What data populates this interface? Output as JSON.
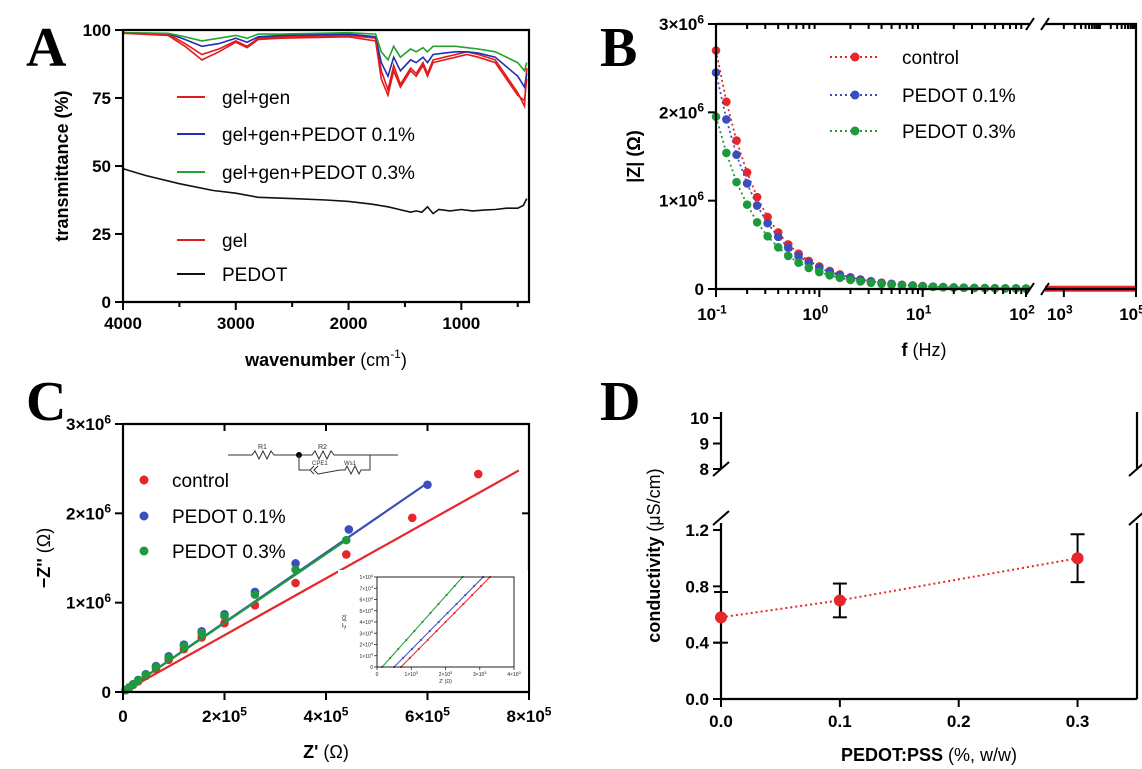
{
  "panels": {
    "A": "A",
    "B": "B",
    "C": "C",
    "D": "D"
  },
  "chart_data": [
    {
      "panel": "A",
      "type": "line",
      "xlabel": "wavenumber",
      "xlabel_unit": "(cm",
      "xlabel_unit_sup": "-1",
      "xlabel_unit_close": ")",
      "ylabel": "transmittance (%)",
      "xlim": [
        4000,
        400
      ],
      "ylim": [
        0,
        100
      ],
      "xticks": [
        "4000",
        "3000",
        "2000",
        "1000"
      ],
      "yticks": [
        "0",
        "25",
        "50",
        "75",
        "100"
      ],
      "legend_placement": "left-center",
      "series": [
        {
          "name": "gel+gen",
          "color": "#e31a1c",
          "x": [
            4000,
            3600,
            3450,
            3300,
            3150,
            3000,
            2900,
            2800,
            2600,
            2000,
            1760,
            1710,
            1650,
            1600,
            1540,
            1450,
            1400,
            1340,
            1300,
            1250,
            1150,
            1050,
            950,
            850,
            700,
            500,
            440,
            420
          ],
          "y": [
            99,
            98.5,
            95,
            91,
            93,
            96,
            94,
            97,
            97.5,
            98,
            97,
            85,
            78,
            87,
            80,
            86,
            84,
            88,
            84,
            89,
            90,
            91,
            92,
            91,
            89,
            77,
            72,
            86
          ]
        },
        {
          "name": "gel+gen+PEDOT 0.1%",
          "color": "#1f2fb4",
          "x": [
            4000,
            3600,
            3450,
            3300,
            3150,
            3000,
            2900,
            2800,
            2600,
            2000,
            1760,
            1710,
            1650,
            1600,
            1540,
            1450,
            1400,
            1340,
            1300,
            1250,
            1150,
            1050,
            950,
            850,
            700,
            500,
            440,
            420
          ],
          "y": [
            99,
            98.7,
            96.5,
            94,
            95,
            97,
            95.5,
            97.5,
            98,
            98.5,
            97.5,
            88,
            83,
            90,
            85,
            89,
            88,
            90,
            88,
            91,
            91.5,
            92,
            92,
            91.5,
            90,
            83,
            79,
            84
          ]
        },
        {
          "name": "gel+gen+PEDOT 0.3%",
          "color": "#22a32a",
          "x": [
            4000,
            3600,
            3450,
            3300,
            3150,
            3000,
            2900,
            2800,
            2600,
            2000,
            1760,
            1710,
            1650,
            1600,
            1540,
            1450,
            1400,
            1340,
            1300,
            1250,
            1150,
            1050,
            950,
            850,
            700,
            500,
            440,
            420
          ],
          "y": [
            99,
            98.8,
            97.5,
            96,
            97,
            98,
            97,
            98.5,
            98.5,
            99,
            98.5,
            92,
            89,
            94,
            90,
            93,
            92,
            93.5,
            92,
            94,
            94,
            94,
            93.5,
            93,
            92,
            88,
            85,
            88
          ]
        },
        {
          "name": "gel",
          "color": "#e31a1c",
          "x": [
            4000,
            3600,
            3450,
            3300,
            3150,
            3000,
            2900,
            2800,
            2600,
            2000,
            1760,
            1710,
            1650,
            1600,
            1540,
            1450,
            1400,
            1340,
            1300,
            1250,
            1150,
            1050,
            950,
            850,
            700,
            500,
            440,
            420
          ],
          "y": [
            98.8,
            98,
            94,
            89,
            92,
            95.5,
            93.5,
            96.5,
            97,
            97.5,
            96,
            82,
            76,
            85,
            79,
            85,
            83,
            87,
            83,
            88,
            89,
            90,
            91,
            90,
            88,
            76,
            74,
            82
          ]
        },
        {
          "name": "PEDOT",
          "color": "#111111",
          "x": [
            4000,
            3800,
            3500,
            3200,
            3000,
            2800,
            2500,
            2200,
            2000,
            1800,
            1650,
            1550,
            1450,
            1400,
            1350,
            1300,
            1250,
            1200,
            1100,
            1000,
            900,
            800,
            700,
            600,
            500,
            450,
            420
          ],
          "y": [
            49,
            46.5,
            43.5,
            41,
            40,
            38.5,
            38,
            37.5,
            37,
            36,
            35,
            34,
            33,
            33.5,
            33,
            35,
            32.5,
            34,
            33.5,
            34,
            33.5,
            33.8,
            34,
            34.5,
            34.5,
            35.5,
            38
          ]
        }
      ]
    },
    {
      "panel": "B",
      "type": "line",
      "xlabel": "f",
      "xlabel_unit": "(Hz)",
      "ylabel": "|Z| (Ω)",
      "xscale": "log",
      "axis_break_x": [
        100,
        300
      ],
      "xlim": [
        0.1,
        100000
      ],
      "ylim": [
        0,
        3000000
      ],
      "xticks": [
        {
          "base": "10",
          "exp": "-1"
        },
        {
          "base": "10",
          "exp": "0"
        },
        {
          "base": "10",
          "exp": "1"
        },
        {
          "base": "10",
          "exp": "2"
        },
        {
          "base": "10",
          "exp": "3"
        },
        {
          "base": "10",
          "exp": "5"
        }
      ],
      "yticks": [
        {
          "base": "0",
          "exp": ""
        },
        {
          "base": "1×10",
          "exp": "6"
        },
        {
          "base": "2×10",
          "exp": "6"
        },
        {
          "base": "3×10",
          "exp": "6"
        }
      ],
      "legend_placement": "top-right",
      "series": [
        {
          "name": "control",
          "color": "#e8262a",
          "x": [
            0.1,
            0.126,
            0.158,
            0.2,
            0.25,
            0.316,
            0.4,
            0.5,
            0.63,
            0.79,
            1,
            1.26,
            1.58,
            2,
            2.5,
            3.16,
            4,
            5,
            6.3,
            8,
            10,
            12.6,
            15.8,
            20,
            25,
            31.6,
            40,
            50,
            63,
            80,
            100,
            300,
            1000,
            10000,
            100000
          ],
          "y": [
            2700000,
            2120000,
            1680000,
            1320000,
            1040000,
            815000,
            640000,
            505000,
            400000,
            318000,
            255000,
            205000,
            165000,
            133000,
            108000,
            88000,
            72000,
            59000,
            48000,
            40000,
            33000,
            27000,
            22000,
            18000,
            15000,
            12500,
            10500,
            9000,
            7500,
            6500,
            5500,
            3000,
            2000,
            1000,
            500
          ]
        },
        {
          "name": "PEDOT 0.1%",
          "color": "#3a4fbd",
          "x": [
            0.1,
            0.126,
            0.158,
            0.2,
            0.25,
            0.316,
            0.4,
            0.5,
            0.63,
            0.79,
            1,
            1.26,
            1.58,
            2,
            2.5,
            3.16,
            4,
            5,
            6.3,
            8,
            10,
            12.6,
            15.8,
            20,
            25,
            31.6,
            40,
            50,
            63,
            80,
            100
          ],
          "y": [
            2450000,
            1920000,
            1520000,
            1195000,
            945000,
            745000,
            590000,
            468000,
            372000,
            297000,
            238000,
            192000,
            155000,
            125000,
            102000,
            83000,
            68000,
            56000,
            46000,
            38000,
            31500,
            26000,
            21500,
            17500,
            14500,
            12000,
            10000,
            8500,
            7200,
            6200,
            5200
          ]
        },
        {
          "name": "PEDOT 0.3%",
          "color": "#1e9a3e",
          "x": [
            0.1,
            0.126,
            0.158,
            0.2,
            0.25,
            0.316,
            0.4,
            0.5,
            0.63,
            0.79,
            1,
            1.26,
            1.58,
            2,
            2.5,
            3.16,
            4,
            5,
            6.3,
            8,
            10,
            12.6,
            15.8,
            20,
            25,
            31.6,
            40,
            50,
            63,
            80,
            100
          ],
          "y": [
            1950000,
            1540000,
            1210000,
            955000,
            755000,
            597000,
            472000,
            374000,
            298000,
            238000,
            191000,
            155000,
            126000,
            103000,
            85000,
            70000,
            58000,
            48000,
            40000,
            33000,
            27500,
            23000,
            19000,
            16000,
            13500,
            11300,
            9500,
            8100,
            6900,
            5900,
            5000
          ]
        }
      ]
    },
    {
      "panel": "C",
      "type": "scatter",
      "xlabel": "Z'",
      "xlabel_unit": "(Ω)",
      "ylabel": "−Z''",
      "ylabel_unit": "(Ω)",
      "xlim": [
        0,
        800000
      ],
      "ylim": [
        0,
        3000000
      ],
      "xticks": [
        {
          "base": "0",
          "exp": ""
        },
        {
          "base": "2×10",
          "exp": "5"
        },
        {
          "base": "4×10",
          "exp": "5"
        },
        {
          "base": "6×10",
          "exp": "5"
        },
        {
          "base": "8×10",
          "exp": "5"
        }
      ],
      "yticks": [
        {
          "base": "0",
          "exp": ""
        },
        {
          "base": "1×10",
          "exp": "6"
        },
        {
          "base": "2×10",
          "exp": "6"
        },
        {
          "base": "3×10",
          "exp": "6"
        }
      ],
      "legend_placement": "top-left",
      "circuit": {
        "r1": "R1",
        "r2": "R2",
        "cpe": "CPE1",
        "ws": "Ws1"
      },
      "series": [
        {
          "name": "control",
          "color": "#e8262a",
          "x": [
            5000,
            12000,
            20000,
            30000,
            45000,
            65000,
            90000,
            120000,
            155000,
            200000,
            260000,
            340000,
            440000,
            570000,
            700000
          ],
          "y": [
            20000,
            45000,
            80000,
            120000,
            180000,
            260000,
            360000,
            480000,
            610000,
            770000,
            970000,
            1220000,
            1540000,
            1950000,
            2440000
          ],
          "fit_x": [
            0,
            780000
          ],
          "fit_y": [
            0,
            2480000
          ]
        },
        {
          "name": "PEDOT 0.1%",
          "color": "#3a4fbd",
          "x": [
            5000,
            12000,
            20000,
            30000,
            45000,
            65000,
            90000,
            120000,
            155000,
            200000,
            260000,
            340000,
            445000,
            600000
          ],
          "y": [
            22000,
            50000,
            88000,
            135000,
            200000,
            290000,
            400000,
            530000,
            680000,
            870000,
            1120000,
            1440000,
            1820000,
            2320000
          ],
          "fit_x": [
            0,
            595000
          ],
          "fit_y": [
            0,
            2320000
          ]
        },
        {
          "name": "PEDOT 0.3%",
          "color": "#1e9a3e",
          "x": [
            5000,
            12000,
            20000,
            30000,
            45000,
            65000,
            90000,
            120000,
            155000,
            200000,
            260000,
            340000,
            440000
          ],
          "y": [
            21000,
            48000,
            85000,
            130000,
            195000,
            280000,
            385000,
            515000,
            660000,
            850000,
            1090000,
            1370000,
            1700000
          ],
          "fit_x": [
            0,
            440000
          ],
          "fit_y": [
            0,
            1700000
          ]
        }
      ],
      "inset": {
        "ytick_labels": [
          {
            "base": "0",
            "exp": ""
          },
          {
            "base": "1×10",
            "exp": "4"
          },
          {
            "base": "2×10",
            "exp": "4"
          },
          {
            "base": "3×10",
            "exp": "4"
          },
          {
            "base": "4×10",
            "exp": "4"
          },
          {
            "base": "5×10",
            "exp": "4"
          },
          {
            "base": "6×10",
            "exp": "4"
          },
          {
            "base": "7×10",
            "exp": "4"
          },
          {
            "base": "1×10",
            "exp": "4"
          }
        ],
        "xtick_labels": [
          {
            "base": "0",
            "exp": ""
          },
          {
            "base": "1×10",
            "exp": "3"
          },
          {
            "base": "2×10",
            "exp": "3"
          },
          {
            "base": "3×10",
            "exp": "3"
          },
          {
            "base": "4×10",
            "exp": "3"
          }
        ],
        "xlabel": "Z' (Ω)",
        "ylabel": "-Z'' (Ω)",
        "xlim": [
          0,
          4000
        ],
        "ylim": [
          0,
          80000
        ],
        "series": [
          {
            "name": "control",
            "color": "#e8262a",
            "x": [
              700,
              3300
            ],
            "y": [
              0,
              80000
            ]
          },
          {
            "name": "PEDOT 0.1%",
            "color": "#3a4fbd",
            "x": [
              500,
              3100
            ],
            "y": [
              0,
              80000
            ]
          },
          {
            "name": "PEDOT 0.3%",
            "color": "#1e9a3e",
            "x": [
              150,
              2500
            ],
            "y": [
              0,
              80000
            ]
          }
        ]
      }
    },
    {
      "panel": "D",
      "type": "line",
      "xlabel": "PEDOT:PSS",
      "xlabel_unit": "(%, w/w)",
      "ylabel": "conductivity",
      "ylabel_unit": "(μS/cm)",
      "axis_break_y": [
        1.25,
        8
      ],
      "xlim": [
        0,
        0.35
      ],
      "ylim": [
        0,
        10
      ],
      "xticks": [
        "0.0",
        "0.1",
        "0.2",
        "0.3"
      ],
      "yticks": [
        "0.0",
        "0.4",
        "0.8",
        "1.2",
        "8",
        "9",
        "10"
      ],
      "series": [
        {
          "name": "",
          "color": "#e8262a",
          "x": [
            0.0,
            0.1,
            0.3
          ],
          "y": [
            0.58,
            0.7,
            1.0
          ],
          "err": [
            0.18,
            0.12,
            0.17
          ]
        }
      ]
    }
  ]
}
